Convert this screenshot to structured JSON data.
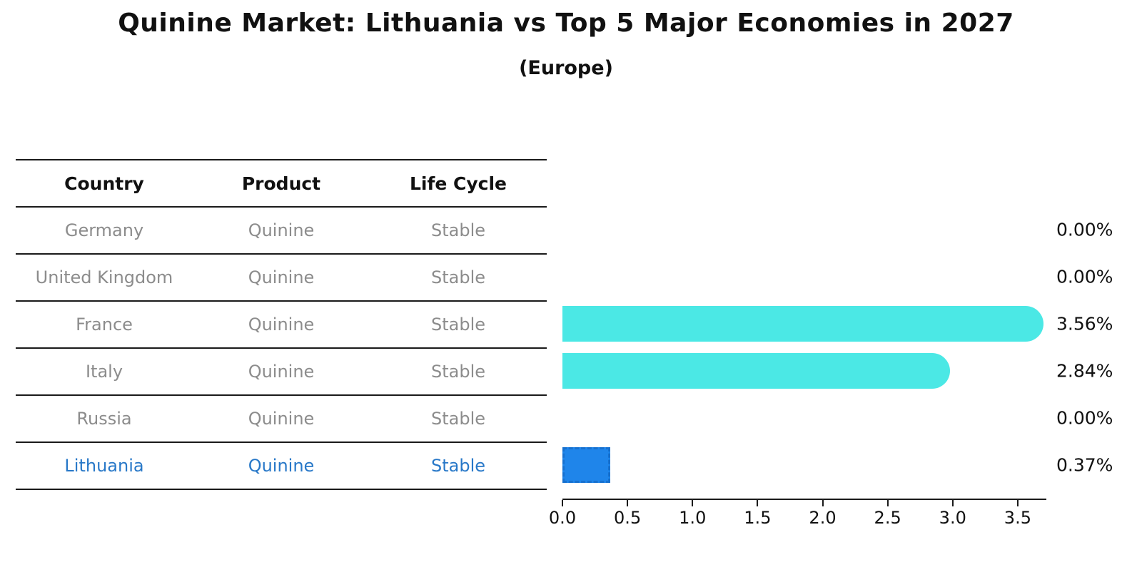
{
  "title": "Quinine Market: Lithuania vs Top 5 Major Economies in 2027",
  "subtitle": "(Europe)",
  "table": {
    "columns": [
      "Country",
      "Product",
      "Life Cycle"
    ],
    "rows": [
      {
        "country": "Germany",
        "product": "Quinine",
        "life_cycle": "Stable",
        "highlight": false
      },
      {
        "country": "United Kingdom",
        "product": "Quinine",
        "life_cycle": "Stable",
        "highlight": false
      },
      {
        "country": "France",
        "product": "Quinine",
        "life_cycle": "Stable",
        "highlight": false
      },
      {
        "country": "Italy",
        "product": "Quinine",
        "life_cycle": "Stable",
        "highlight": false
      },
      {
        "country": "Russia",
        "product": "Quinine",
        "life_cycle": "Stable",
        "highlight": false
      },
      {
        "country": "Lithuania",
        "product": "Quinine",
        "life_cycle": "Stable",
        "highlight": true
      }
    ]
  },
  "chart_data": {
    "type": "bar",
    "orientation": "horizontal",
    "title": "Quinine Market: Lithuania vs Top 5 Major Economies in 2027",
    "subtitle": "(Europe)",
    "xlabel": "",
    "ylabel": "",
    "categories": [
      "Germany",
      "United Kingdom",
      "France",
      "Italy",
      "Russia",
      "Lithuania"
    ],
    "values": [
      0.0,
      0.0,
      3.56,
      2.84,
      0.0,
      0.37
    ],
    "value_labels": [
      "0.00%",
      "0.00%",
      "3.56%",
      "2.84%",
      "0.00%",
      "0.37%"
    ],
    "highlight_index": 5,
    "x_ticks": [
      0.0,
      0.5,
      1.0,
      1.5,
      2.0,
      2.5,
      3.0,
      3.5
    ],
    "x_tick_labels": [
      "0.0",
      "0.5",
      "1.0",
      "1.5",
      "2.0",
      "2.5",
      "3.0",
      "3.5"
    ],
    "xlim": [
      0,
      3.72
    ],
    "grid": false,
    "legend": "none",
    "colors": {
      "bar_default": "#4be8e5",
      "bar_highlight": "#1f85ea",
      "bar_highlight_border": "#1670cf",
      "highlight_text": "#2878c8",
      "table_text": "#8c8c8c",
      "text": "#111111",
      "line": "#1a1a1a",
      "background": "#ffffff"
    }
  }
}
